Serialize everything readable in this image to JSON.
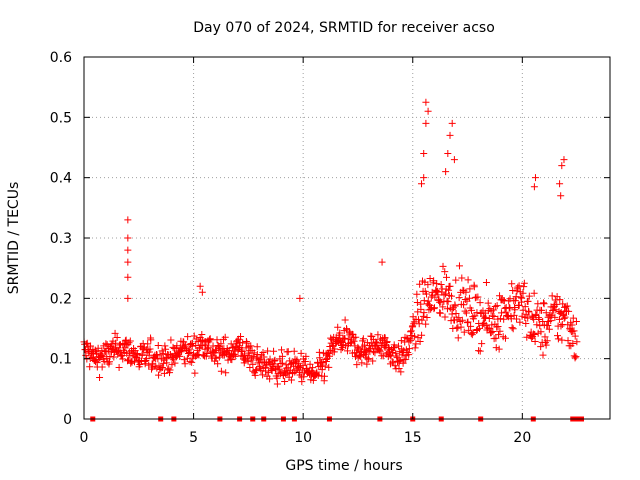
{
  "chart_data": {
    "type": "scatter",
    "title": "Day 070 of 2024, SRMTID for receiver acso",
    "xlabel": "GPS time / hours",
    "ylabel": "SRMTID / TECUs",
    "xlim": [
      0,
      24
    ],
    "ylim": [
      0,
      0.6
    ],
    "x_ticks": [
      0,
      5,
      10,
      15,
      20
    ],
    "x_tick_labels": [
      "0",
      "5",
      "10",
      "15",
      "20"
    ],
    "y_ticks": [
      0,
      0.1,
      0.2,
      0.3,
      0.4,
      0.5,
      0.6
    ],
    "y_tick_labels": [
      "0",
      "0.1",
      "0.2",
      "0.3",
      "0.4",
      "0.5",
      "0.6"
    ],
    "grid": true,
    "marker": "+",
    "color": "#ff0000",
    "baseline_markers_hours": [
      0.4,
      3.5,
      4.1,
      6.2,
      7.1,
      7.7,
      8.2,
      9.1,
      9.6,
      11.2,
      13.5,
      15.0,
      16.3,
      18.1,
      20.5,
      22.3,
      22.5,
      22.7
    ],
    "series": [
      {
        "name": "SRMTID",
        "profile": [
          [
            0.0,
            0.115
          ],
          [
            0.5,
            0.1
          ],
          [
            1.0,
            0.105
          ],
          [
            1.5,
            0.115
          ],
          [
            2.0,
            0.115
          ],
          [
            2.5,
            0.1
          ],
          [
            3.0,
            0.105
          ],
          [
            3.5,
            0.1
          ],
          [
            4.0,
            0.1
          ],
          [
            4.5,
            0.115
          ],
          [
            5.0,
            0.11
          ],
          [
            5.5,
            0.13
          ],
          [
            6.0,
            0.105
          ],
          [
            6.5,
            0.11
          ],
          [
            7.0,
            0.12
          ],
          [
            7.5,
            0.105
          ],
          [
            8.0,
            0.09
          ],
          [
            8.5,
            0.09
          ],
          [
            9.0,
            0.085
          ],
          [
            9.5,
            0.085
          ],
          [
            10.0,
            0.085
          ],
          [
            10.5,
            0.07
          ],
          [
            11.0,
            0.09
          ],
          [
            11.5,
            0.13
          ],
          [
            12.0,
            0.13
          ],
          [
            12.5,
            0.115
          ],
          [
            13.0,
            0.11
          ],
          [
            13.5,
            0.13
          ],
          [
            14.0,
            0.11
          ],
          [
            14.5,
            0.1
          ],
          [
            15.0,
            0.14
          ],
          [
            15.5,
            0.19
          ],
          [
            16.0,
            0.2
          ],
          [
            16.5,
            0.21
          ],
          [
            17.0,
            0.19
          ],
          [
            17.5,
            0.18
          ],
          [
            18.0,
            0.17
          ],
          [
            18.5,
            0.16
          ],
          [
            19.0,
            0.17
          ],
          [
            19.5,
            0.19
          ],
          [
            20.0,
            0.19
          ],
          [
            20.5,
            0.16
          ],
          [
            21.0,
            0.15
          ],
          [
            21.5,
            0.17
          ],
          [
            22.0,
            0.17
          ],
          [
            22.5,
            0.13
          ]
        ],
        "spikes": [
          [
            2.0,
            0.33
          ],
          [
            2.0,
            0.3
          ],
          [
            2.0,
            0.28
          ],
          [
            2.0,
            0.26
          ],
          [
            2.0,
            0.235
          ],
          [
            2.0,
            0.2
          ],
          [
            5.3,
            0.22
          ],
          [
            5.4,
            0.21
          ],
          [
            9.85,
            0.2
          ],
          [
            13.6,
            0.26
          ],
          [
            15.6,
            0.525
          ],
          [
            15.7,
            0.51
          ],
          [
            15.6,
            0.49
          ],
          [
            15.5,
            0.44
          ],
          [
            15.5,
            0.4
          ],
          [
            15.4,
            0.39
          ],
          [
            16.8,
            0.49
          ],
          [
            16.7,
            0.47
          ],
          [
            16.6,
            0.44
          ],
          [
            16.9,
            0.43
          ],
          [
            16.5,
            0.41
          ],
          [
            20.6,
            0.4
          ],
          [
            20.55,
            0.385
          ],
          [
            21.9,
            0.43
          ],
          [
            21.8,
            0.42
          ],
          [
            21.7,
            0.39
          ],
          [
            21.75,
            0.37
          ]
        ]
      }
    ]
  }
}
